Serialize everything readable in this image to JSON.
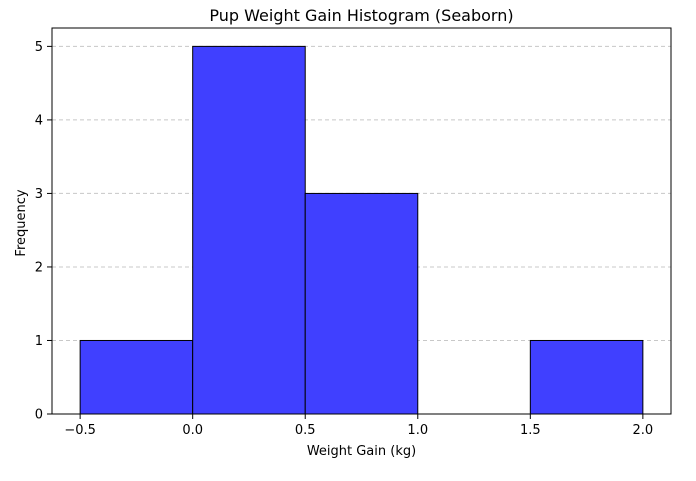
{
  "chart_data": {
    "type": "bar",
    "title": "Pup Weight Gain Histogram (Seaborn)",
    "xlabel": "Weight Gain (kg)",
    "ylabel": "Frequency",
    "xlim": [
      -0.625,
      2.125
    ],
    "ylim": [
      0,
      5.25
    ],
    "x_ticks": [
      -0.5,
      0.0,
      0.5,
      1.0,
      1.5,
      2.0
    ],
    "x_tick_labels": [
      "−0.5",
      "0.0",
      "0.5",
      "1.0",
      "1.5",
      "2.0"
    ],
    "y_ticks": [
      0,
      1,
      2,
      3,
      4,
      5
    ],
    "y_tick_labels": [
      "0",
      "1",
      "2",
      "3",
      "4",
      "5"
    ],
    "bins": [
      {
        "x0": -0.5,
        "x1": 0.0,
        "count": 1
      },
      {
        "x0": 0.0,
        "x1": 0.5,
        "count": 5
      },
      {
        "x0": 0.5,
        "x1": 1.0,
        "count": 3
      },
      {
        "x0": 1.0,
        "x1": 1.5,
        "count": 0
      },
      {
        "x0": 1.5,
        "x1": 2.0,
        "count": 1
      }
    ],
    "grid": "y-dashed",
    "colors": {
      "bar_fill": "#4040ff",
      "bar_edge": "#000000",
      "grid": "#c8c8c8",
      "axes": "#000000",
      "background": "#ffffff"
    }
  }
}
